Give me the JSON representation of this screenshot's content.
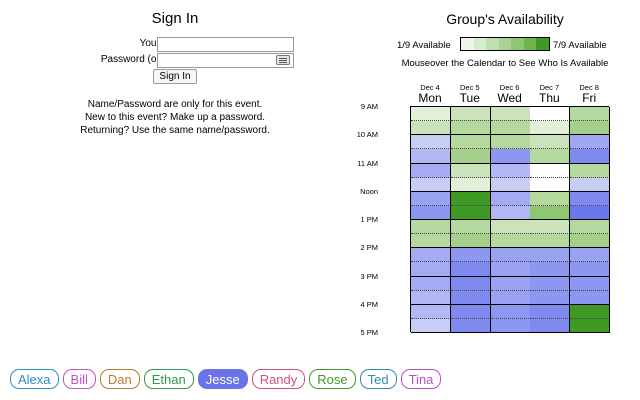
{
  "signin": {
    "title": "Sign In",
    "name_label": "Your Name:",
    "name_value": "",
    "password_label": "Password (optional):",
    "password_value": "",
    "button_label": "Sign In",
    "help_lines": [
      "Name/Password are only for this event.",
      "New to this event? Make up a password.",
      "Returning? Use the same name/password."
    ]
  },
  "availability": {
    "title": "Group's Availability",
    "legend_min": "1/9 Available",
    "legend_max": "7/9 Available",
    "legend_colors": [
      "#eef5e8",
      "#d9ebcd",
      "#c2dfb0",
      "#aad393",
      "#8fc672",
      "#6db64a",
      "#3e9a24"
    ],
    "mouseover_note": "Mouseover the Calendar to See Who Is Available",
    "days": [
      {
        "date": "Dec 4",
        "name": "Mon"
      },
      {
        "date": "Dec 5",
        "name": "Tue"
      },
      {
        "date": "Dec 6",
        "name": "Wed"
      },
      {
        "date": "Dec 7",
        "name": "Thu"
      },
      {
        "date": "Dec 8",
        "name": "Fri"
      }
    ],
    "times": [
      "9 AM",
      "10 AM",
      "11 AM",
      "Noon",
      "1 PM",
      "2 PM",
      "3 PM",
      "4 PM",
      "5 PM"
    ],
    "grid_colors": [
      [
        "#e3efd9",
        "#cbe3ba",
        "#cbe3ba",
        "#ffffff",
        "#b5d89f"
      ],
      [
        "#cbe3ba",
        "#b5d89f",
        "#b5d89f",
        "#e3efd9",
        "#a4d08b"
      ],
      [
        "#c8cdf5",
        "#b5d89f",
        "#b5d89f",
        "#cbe3ba",
        "#9fa6f2"
      ],
      [
        "#b2b8f4",
        "#a4d08b",
        "#8d96f0",
        "#b5d89f",
        "#7f89ee"
      ],
      [
        "#a4abf2",
        "#cbe3ba",
        "#b2b8f4",
        "#ffffff",
        "#b5d89f"
      ],
      [
        "#c8cdf5",
        "#e3efd9",
        "#c8cdf5",
        "#ffffff",
        "#c8cdf5"
      ],
      [
        "#9aa2f2",
        "#3e9a24",
        "#a4abf2",
        "#b5d89f",
        "#7f89ee"
      ],
      [
        "#8d96f0",
        "#3e9a24",
        "#b2b8f4",
        "#8fc672",
        "#6b77ec"
      ],
      [
        "#b5d89f",
        "#b5d89f",
        "#cbe3ba",
        "#cbe3ba",
        "#b5d89f"
      ],
      [
        "#b5d89f",
        "#a4d08b",
        "#b5d89f",
        "#b5d89f",
        "#a4d08b"
      ],
      [
        "#a4abf2",
        "#8d96f0",
        "#9aa2f2",
        "#9aa2f2",
        "#9aa2f2"
      ],
      [
        "#a4abf2",
        "#7f89ee",
        "#9aa2f2",
        "#8d96f0",
        "#8d96f0"
      ],
      [
        "#a4abf2",
        "#7f89ee",
        "#9aa2f2",
        "#8d96f0",
        "#8d96f0"
      ],
      [
        "#b2b8f4",
        "#7f89ee",
        "#9aa2f2",
        "#8d96f0",
        "#8d96f0"
      ],
      [
        "#b2b8f4",
        "#7f89ee",
        "#8d96f0",
        "#7f89ee",
        "#3e9a24"
      ],
      [
        "#c8cdf5",
        "#7f89ee",
        "#8d96f0",
        "#7f89ee",
        "#3e9a24"
      ]
    ]
  },
  "people": [
    {
      "name": "Alexa",
      "color": "#2e8cc4",
      "selected": false
    },
    {
      "name": "Bill",
      "color": "#c84fc8",
      "selected": false
    },
    {
      "name": "Dan",
      "color": "#b87a2e",
      "selected": false
    },
    {
      "name": "Ethan",
      "color": "#2e9a4e",
      "selected": false
    },
    {
      "name": "Jesse",
      "color": "#6b73e8",
      "selected": true
    },
    {
      "name": "Randy",
      "color": "#d0547a",
      "selected": false
    },
    {
      "name": "Rose",
      "color": "#3e9a24",
      "selected": false
    },
    {
      "name": "Ted",
      "color": "#2e8ca8",
      "selected": false
    },
    {
      "name": "Tina",
      "color": "#b84fc8",
      "selected": false
    }
  ]
}
